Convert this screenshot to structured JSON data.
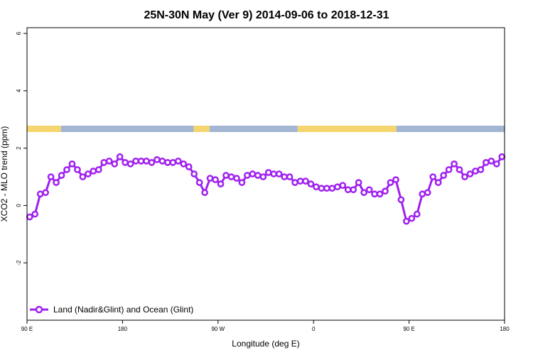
{
  "chart_data": {
    "type": "line",
    "title": "25N-30N May (Ver 9)   2014-09-06 to 2018-12-31",
    "xlabel": "Longitude (deg E)",
    "ylabel": "XCO2 - MLO trend (ppm)",
    "x_tick_values": [
      90,
      180,
      270,
      360,
      450,
      540
    ],
    "x_tick_labels": [
      "90 E",
      "180",
      "90 W",
      "0",
      "90 E",
      "180"
    ],
    "y_ticks": [
      -2,
      0,
      2,
      4,
      6
    ],
    "xlim": [
      90,
      540
    ],
    "ylim": [
      -4,
      6.2
    ],
    "colors": {
      "series": "#a020f0",
      "land": "#f5d56e",
      "ocean": "#a2b6d4"
    },
    "legend_position": "bottom-left",
    "surface_strip": [
      {
        "type": "land",
        "from": 90,
        "to": 122
      },
      {
        "type": "ocean",
        "from": 122,
        "to": 247
      },
      {
        "type": "land",
        "from": 247,
        "to": 262
      },
      {
        "type": "ocean",
        "from": 262,
        "to": 345
      },
      {
        "type": "land",
        "from": 345,
        "to": 438
      },
      {
        "type": "ocean",
        "from": 438,
        "to": 540
      }
    ],
    "series": [
      {
        "name": "Land (Nadir&Glint) and Ocean (Glint)",
        "x": [
          92.5,
          97.5,
          102.5,
          107.5,
          112.5,
          117.5,
          122.5,
          127.5,
          132.5,
          137.5,
          142.5,
          147.5,
          152.5,
          157.5,
          162.5,
          167.5,
          172.5,
          177.5,
          182.5,
          187.5,
          192.5,
          197.5,
          202.5,
          207.5,
          212.5,
          217.5,
          222.5,
          227.5,
          232.5,
          237.5,
          242.5,
          247.5,
          252.5,
          257.5,
          262.5,
          267.5,
          272.5,
          277.5,
          282.5,
          287.5,
          292.5,
          297.5,
          302.5,
          307.5,
          312.5,
          317.5,
          322.5,
          327.5,
          332.5,
          337.5,
          342.5,
          347.5,
          352.5,
          357.5,
          362.5,
          367.5,
          372.5,
          377.5,
          382.5,
          387.5,
          392.5,
          397.5,
          402.5,
          407.5,
          412.5,
          417.5,
          422.5,
          427.5,
          432.5,
          437.5,
          442.5,
          447.5,
          452.5,
          457.5,
          462.5,
          467.5,
          472.5,
          477.5,
          482.5,
          487.5,
          492.5,
          497.5,
          502.5,
          507.5,
          512.5,
          517.5,
          522.5,
          527.5,
          532.5,
          537.5
        ],
        "values": [
          -0.4,
          -0.3,
          0.4,
          0.45,
          1.0,
          0.8,
          1.05,
          1.25,
          1.45,
          1.25,
          1.0,
          1.1,
          1.2,
          1.25,
          1.5,
          1.55,
          1.45,
          1.7,
          1.5,
          1.45,
          1.55,
          1.55,
          1.55,
          1.5,
          1.6,
          1.55,
          1.5,
          1.5,
          1.55,
          1.45,
          1.35,
          1.1,
          0.8,
          0.45,
          0.95,
          0.9,
          0.75,
          1.05,
          1.0,
          0.95,
          0.8,
          1.05,
          1.1,
          1.05,
          1.0,
          1.15,
          1.1,
          1.1,
          1.0,
          1.0,
          0.8,
          0.85,
          0.85,
          0.75,
          0.65,
          0.6,
          0.6,
          0.6,
          0.65,
          0.7,
          0.55,
          0.55,
          0.8,
          0.45,
          0.55,
          0.4,
          0.4,
          0.5,
          0.8,
          0.9,
          0.2,
          -0.55,
          -0.45,
          -0.3,
          0.4,
          0.45,
          1.0,
          0.8,
          1.05,
          1.25,
          1.45,
          1.25,
          1.0,
          1.1,
          1.2,
          1.25,
          1.5,
          1.55,
          1.45,
          1.7
        ]
      }
    ]
  }
}
